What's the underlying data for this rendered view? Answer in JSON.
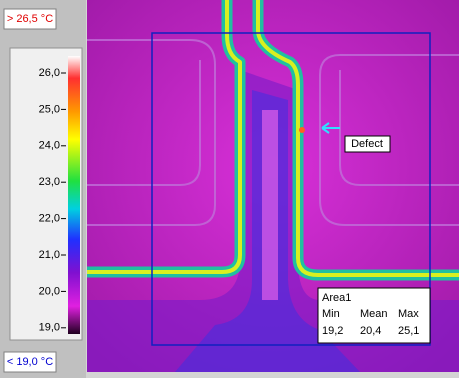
{
  "max_label": "> 26,5 °C",
  "min_label": "< 19,0 °C",
  "scale_ticks": [
    "26,0",
    "25,0",
    "24,0",
    "23,0",
    "22,0",
    "21,0",
    "20,0",
    "19,0"
  ],
  "annotation": "Defect",
  "area": {
    "name": "Area1",
    "headers": [
      "Min",
      "Mean",
      "Max"
    ],
    "values": [
      "19,2",
      "20,4",
      "25,1"
    ]
  }
}
